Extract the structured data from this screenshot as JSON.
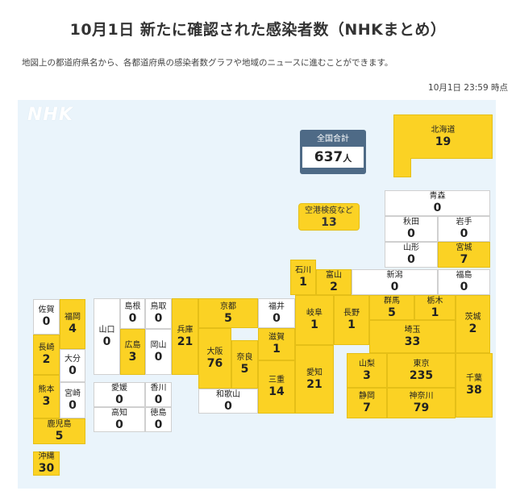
{
  "header": {
    "title": "10月1日 新たに確認された感染者数（NHKまとめ）",
    "description": "地図上の都道府県名から、各都道府県の感染者数グラフや地域のニュースに進むことができます。",
    "timestamp": "10月1日 23:59 時点"
  },
  "logo": "NHK",
  "total": {
    "label": "全国合計",
    "count": "637",
    "unit": "人"
  },
  "quarantine": {
    "name": "空港検疫など",
    "count": "13"
  },
  "colors": {
    "highlight": "#fbd224",
    "total_bg": "#4e6a86",
    "map_bg": "#eaf4fb"
  },
  "prefs": {
    "hokkaido": {
      "name": "北海道",
      "count": "19"
    },
    "aomori": {
      "name": "青森",
      "count": "0"
    },
    "akita": {
      "name": "秋田",
      "count": "0"
    },
    "iwate": {
      "name": "岩手",
      "count": "0"
    },
    "yamagata": {
      "name": "山形",
      "count": "0"
    },
    "miyagi": {
      "name": "宮城",
      "count": "7"
    },
    "ishikawa": {
      "name": "石川",
      "count": "1"
    },
    "toyama": {
      "name": "富山",
      "count": "2"
    },
    "niigata": {
      "name": "新潟",
      "count": "0"
    },
    "fukushima": {
      "name": "福島",
      "count": "0"
    },
    "saga": {
      "name": "佐賀",
      "count": "0"
    },
    "fukuoka": {
      "name": "福岡",
      "count": "4"
    },
    "yamaguchi": {
      "name": "山口",
      "count": "0"
    },
    "shimane": {
      "name": "島根",
      "count": "0"
    },
    "tottori": {
      "name": "鳥取",
      "count": "0"
    },
    "hyogo": {
      "name": "兵庫",
      "count": "21"
    },
    "kyoto": {
      "name": "京都",
      "count": "5"
    },
    "fukui": {
      "name": "福井",
      "count": "0"
    },
    "gifu": {
      "name": "岐阜",
      "count": "1"
    },
    "nagano": {
      "name": "長野",
      "count": "1"
    },
    "gunma": {
      "name": "群馬",
      "count": "5"
    },
    "tochigi": {
      "name": "栃木",
      "count": "1"
    },
    "ibaraki": {
      "name": "茨城",
      "count": "2"
    },
    "nagasaki": {
      "name": "長崎",
      "count": "2"
    },
    "oita": {
      "name": "大分",
      "count": "0"
    },
    "hiroshima": {
      "name": "広島",
      "count": "3"
    },
    "okayama": {
      "name": "岡山",
      "count": "0"
    },
    "osaka": {
      "name": "大阪",
      "count": "76"
    },
    "nara": {
      "name": "奈良",
      "count": "5"
    },
    "shiga": {
      "name": "滋賀",
      "count": "1"
    },
    "saitama": {
      "name": "埼玉",
      "count": "33"
    },
    "yamanashi": {
      "name": "山梨",
      "count": "3"
    },
    "tokyo": {
      "name": "東京",
      "count": "235"
    },
    "chiba": {
      "name": "千葉",
      "count": "38"
    },
    "kumamoto": {
      "name": "熊本",
      "count": "3"
    },
    "miyazaki": {
      "name": "宮崎",
      "count": "0"
    },
    "ehime": {
      "name": "愛媛",
      "count": "0"
    },
    "kagawa": {
      "name": "香川",
      "count": "0"
    },
    "kochi": {
      "name": "高知",
      "count": "0"
    },
    "tokushima": {
      "name": "徳島",
      "count": "0"
    },
    "wakayama": {
      "name": "和歌山",
      "count": "0"
    },
    "mie": {
      "name": "三重",
      "count": "14"
    },
    "aichi": {
      "name": "愛知",
      "count": "21"
    },
    "shizuoka": {
      "name": "静岡",
      "count": "7"
    },
    "kanagawa": {
      "name": "神奈川",
      "count": "79"
    },
    "kagoshima": {
      "name": "鹿児島",
      "count": "5"
    },
    "okinawa": {
      "name": "沖縄",
      "count": "30"
    }
  }
}
